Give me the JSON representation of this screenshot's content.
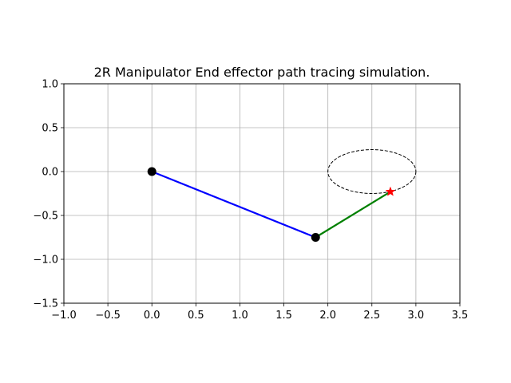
{
  "chart_data": {
    "type": "line",
    "title": "2R Manipulator End effector path tracing simulation.",
    "xlabel": "",
    "ylabel": "",
    "xlim": [
      -1.0,
      3.5
    ],
    "ylim": [
      -1.5,
      1.0
    ],
    "xticks": [
      -1.0,
      -0.5,
      0.0,
      0.5,
      1.0,
      1.5,
      2.0,
      2.5,
      3.0,
      3.5
    ],
    "yticks": [
      -1.5,
      -1.0,
      -0.5,
      0.0,
      0.5,
      1.0
    ],
    "xtick_labels": [
      "−1.0",
      "−0.5",
      "0.0",
      "0.5",
      "1.0",
      "1.5",
      "2.0",
      "2.5",
      "3.0",
      "3.5"
    ],
    "ytick_labels": [
      "−1.5",
      "−1.0",
      "−0.5",
      "0.0",
      "0.5",
      "1.0"
    ],
    "grid": true,
    "legend": "none",
    "path": {
      "shape": "ellipse",
      "center": [
        2.5,
        0.0
      ],
      "rx": 0.5,
      "ry": 0.25,
      "style": "dashed",
      "color": "#000000"
    },
    "series": [
      {
        "points": [
          [
            0.0,
            0.0
          ],
          [
            1.86,
            -0.75
          ]
        ],
        "color": "#0000ff"
      },
      {
        "points": [
          [
            1.86,
            -0.75
          ],
          [
            2.71,
            -0.23
          ]
        ],
        "color": "#008000"
      }
    ],
    "joints": [
      {
        "x": 0.0,
        "y": 0.0,
        "color": "#000000"
      },
      {
        "x": 1.86,
        "y": -0.75,
        "color": "#000000"
      }
    ],
    "end_effector": {
      "x": 2.71,
      "y": -0.23,
      "color": "#ff0000",
      "marker": "star"
    }
  }
}
